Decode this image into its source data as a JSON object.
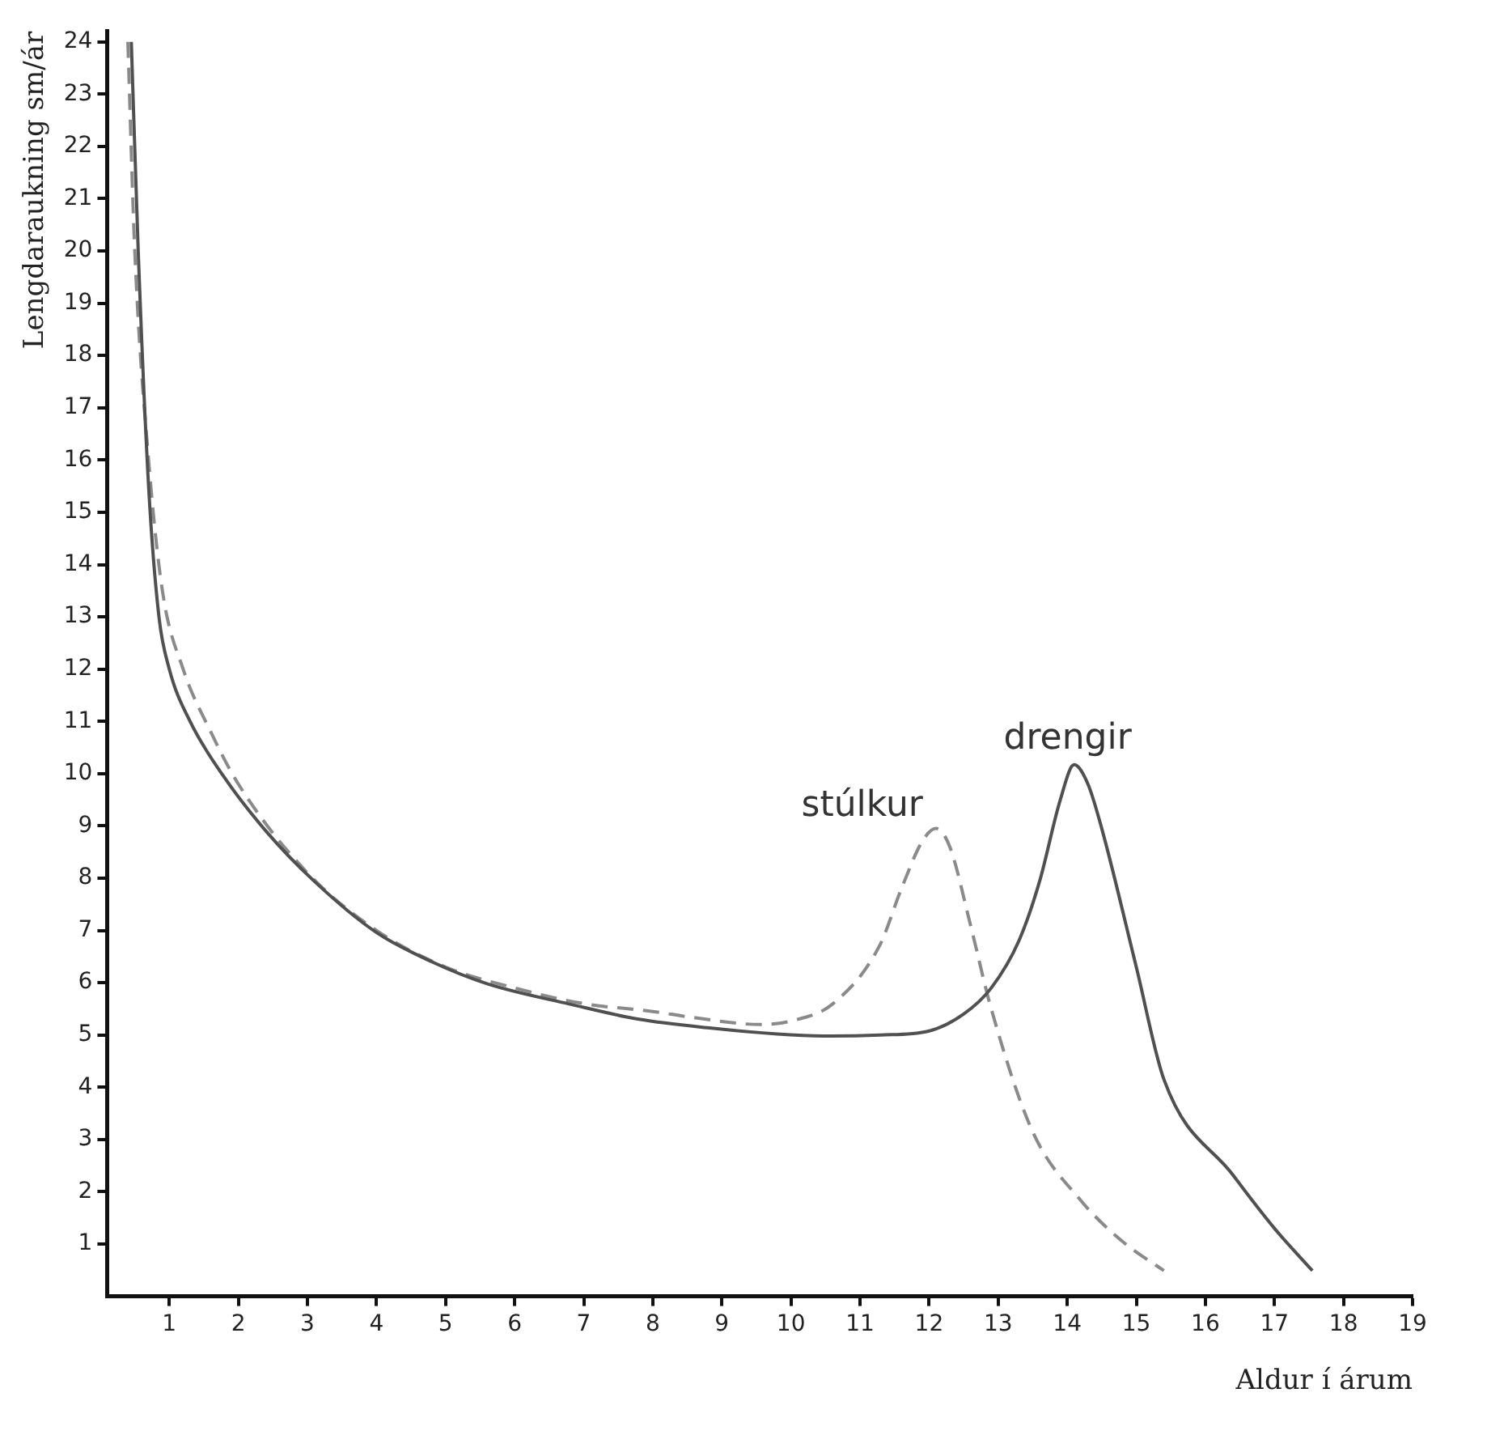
{
  "chart_data": {
    "type": "line",
    "xlabel": "Aldur í árum",
    "ylabel": "Lengdaraukning sm/ár",
    "xlim": [
      0.1,
      19
    ],
    "xticks": [
      1,
      2,
      3,
      4,
      5,
      6,
      7,
      8,
      9,
      10,
      11,
      12,
      13,
      14,
      15,
      16,
      17,
      18,
      19
    ],
    "ylim": [
      0,
      24.2
    ],
    "yticks": [
      1,
      2,
      3,
      4,
      5,
      6,
      7,
      8,
      9,
      10,
      11,
      12,
      13,
      14,
      15,
      16,
      17,
      18,
      19,
      20,
      21,
      22,
      23,
      24
    ],
    "grid": false,
    "legend": false,
    "marker": "none",
    "series": [
      {
        "name": "drengir",
        "color": "#505050",
        "line_style": "solid",
        "x": [
          0.45,
          0.55,
          0.7,
          0.85,
          1,
          1.3,
          1.78,
          2.4,
          3.1,
          4,
          4.8,
          5.6,
          6.8,
          7.8,
          8.85,
          9.8,
          10.57,
          11.3,
          11.98,
          12.5,
          12.9,
          13.3,
          13.6,
          13.9,
          14.1,
          14.3,
          14.5,
          15,
          15.4,
          16.4,
          17,
          17.55
        ],
        "values": [
          24,
          20,
          15.5,
          13,
          12,
          11,
          9.96,
          8.9,
          7.94,
          6.96,
          6.4,
          5.98,
          5.59,
          5.3,
          5.13,
          5.02,
          4.98,
          5,
          5.07,
          5.4,
          5.9,
          6.8,
          7.94,
          9.5,
          10.17,
          9.8,
          8.95,
          6.3,
          4.15,
          2.32,
          1.3,
          0.49
        ]
      },
      {
        "name": "stúlkur",
        "color": "#8a8a8a",
        "line_style": "dashed",
        "x": [
          0.4,
          0.5,
          0.7,
          0.9,
          1.2,
          1.6,
          2,
          3,
          4,
          5,
          6,
          7,
          8,
          8.55,
          9.56,
          10.1,
          10.6,
          11.28,
          11.6,
          11.9,
          12.1,
          12.3,
          12.6,
          12.9,
          13.5,
          14.2,
          14.8,
          15.4
        ],
        "values": [
          24,
          20,
          16,
          13.5,
          12,
          10.8,
          9.8,
          8.1,
          7,
          6.3,
          5.9,
          5.6,
          5.45,
          5.34,
          5.2,
          5.3,
          5.59,
          6.7,
          7.8,
          8.7,
          8.95,
          8.6,
          7.1,
          5.5,
          3.15,
          1.83,
          1.05,
          0.49
        ]
      }
    ]
  }
}
